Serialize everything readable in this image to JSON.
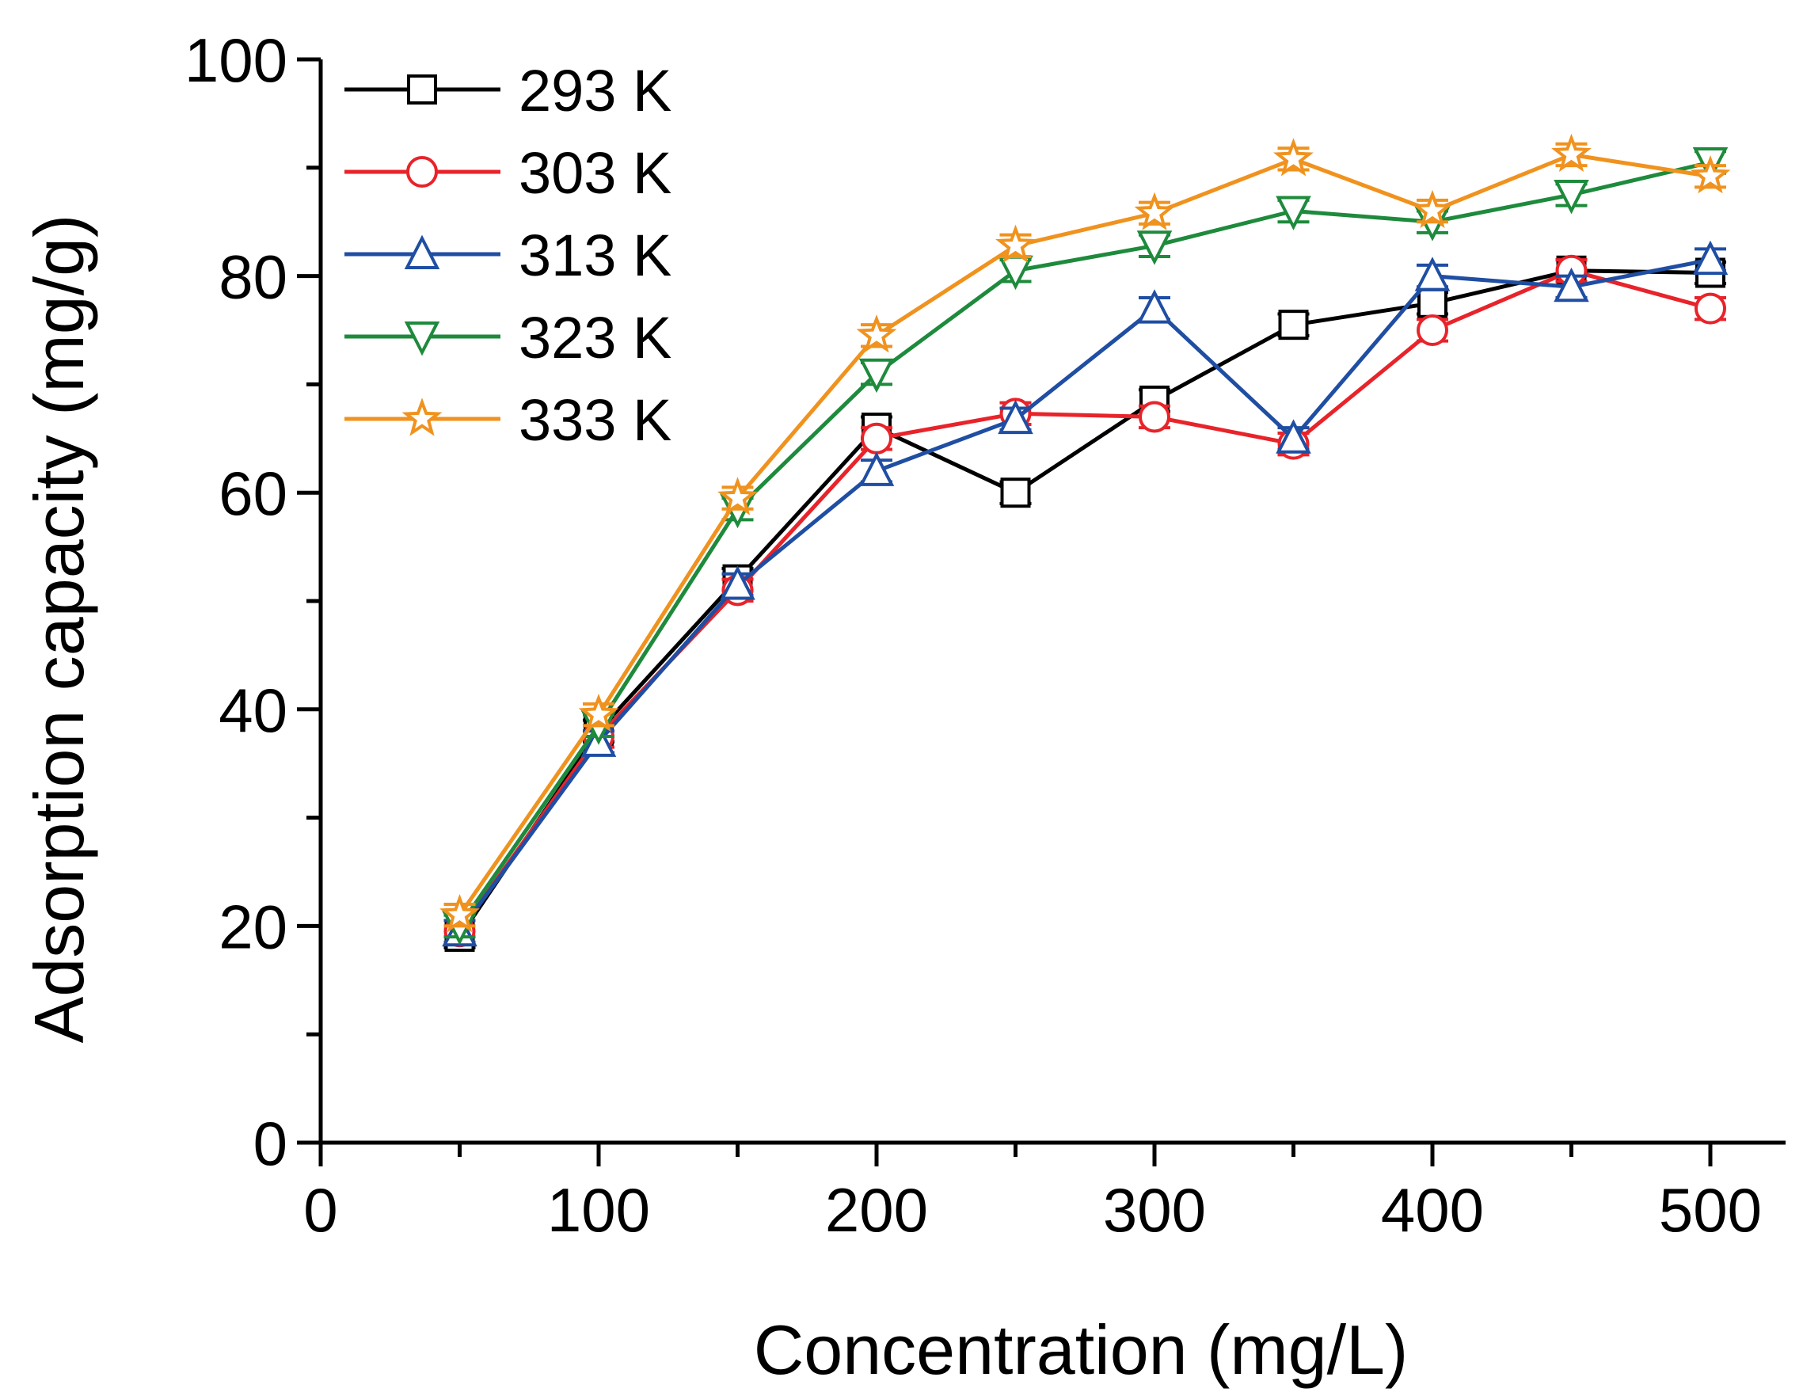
{
  "chart_data": {
    "type": "line",
    "title": "",
    "xlabel": "Concentration (mg/L)",
    "ylabel": "Adsorption capacity (mg/g)",
    "xlim": [
      0,
      525
    ],
    "ylim": [
      0,
      100
    ],
    "x_ticks": [
      0,
      100,
      200,
      300,
      400,
      500
    ],
    "x_tick_labels": [
      "0",
      "100",
      "200",
      "300",
      "400",
      "500"
    ],
    "y_ticks": [
      0,
      20,
      40,
      60,
      80,
      100
    ],
    "y_tick_labels": [
      "0",
      "20",
      "40",
      "60",
      "80",
      "100"
    ],
    "grid": false,
    "legend_position": "top-left",
    "x": [
      50,
      100,
      150,
      200,
      250,
      300,
      350,
      400,
      450,
      500
    ],
    "series": [
      {
        "name": "293 K",
        "color": "#000000",
        "marker": "square",
        "values": [
          19.0,
          38.0,
          52.0,
          66.0,
          60.0,
          68.5,
          75.5,
          77.5,
          80.5,
          80.3
        ],
        "errors": [
          1.0,
          1.0,
          1.0,
          1.0,
          1.0,
          1.0,
          1.0,
          1.0,
          1.0,
          1.0
        ]
      },
      {
        "name": "303 K",
        "color": "#E8232A",
        "marker": "circle",
        "values": [
          19.5,
          37.5,
          51.0,
          65.0,
          67.3,
          67.0,
          64.5,
          75.0,
          80.5,
          77.0
        ],
        "errors": [
          1.0,
          1.0,
          1.0,
          1.0,
          1.0,
          1.0,
          1.0,
          1.0,
          1.0,
          1.0
        ]
      },
      {
        "name": "313 K",
        "color": "#1F4EA3",
        "marker": "triangle-up",
        "values": [
          19.5,
          37.0,
          51.5,
          62.0,
          66.8,
          77.0,
          65.0,
          80.0,
          79.0,
          81.5
        ],
        "errors": [
          1.0,
          1.0,
          1.0,
          1.0,
          1.0,
          1.0,
          1.0,
          1.0,
          1.0,
          1.0
        ]
      },
      {
        "name": "323 K",
        "color": "#1E8A3C",
        "marker": "triangle-down",
        "values": [
          20.0,
          38.5,
          58.5,
          71.0,
          80.5,
          82.8,
          86.0,
          85.0,
          87.5,
          90.5
        ],
        "errors": [
          1.0,
          1.0,
          1.0,
          1.0,
          1.0,
          1.0,
          1.0,
          1.0,
          1.0,
          1.0
        ]
      },
      {
        "name": "333 K",
        "color": "#F0921E",
        "marker": "star",
        "values": [
          21.0,
          39.5,
          59.5,
          74.5,
          82.8,
          85.8,
          90.8,
          86.0,
          91.2,
          89.2
        ],
        "errors": [
          1.0,
          1.0,
          1.0,
          1.0,
          1.0,
          1.0,
          1.0,
          1.0,
          1.0,
          1.0
        ]
      }
    ]
  }
}
